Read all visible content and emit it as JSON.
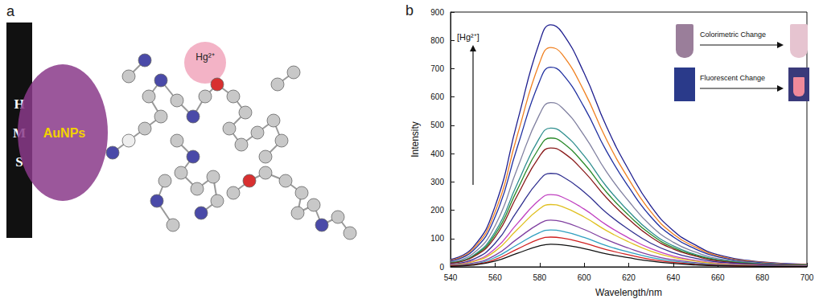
{
  "panel_a": {
    "label": "a",
    "wall_letters": [
      "H",
      "M",
      "S"
    ],
    "nanoparticle": "AuNPs",
    "ion": "Hg²⁺"
  },
  "chart_data": {
    "type": "line",
    "panel_label": "b",
    "x_label": "Wavelength/nm",
    "y_label": "Intensity",
    "annotations": [
      "[Hg²⁺]",
      "Colorimetric Change",
      "Fluorescent Change"
    ],
    "x": [
      540,
      550,
      560,
      570,
      580,
      585,
      590,
      600,
      610,
      620,
      630,
      640,
      650,
      660,
      680,
      700
    ],
    "xlim": [
      540,
      700
    ],
    "xticks": [
      540,
      560,
      580,
      600,
      620,
      640,
      660,
      680,
      700
    ],
    "ylim": [
      0,
      900
    ],
    "yticks": [
      0,
      100,
      200,
      300,
      400,
      500,
      600,
      700,
      800,
      900
    ],
    "grid": false,
    "marker": "none",
    "series": [
      {
        "color": "#1f1f8f",
        "values": [
          26,
          68,
          214,
          513,
          795,
          855,
          829,
          684,
          496,
          342,
          214,
          128,
          77,
          43,
          17,
          9
        ]
      },
      {
        "color": "#f08020",
        "values": [
          23,
          62,
          194,
          465,
          721,
          775,
          752,
          620,
          450,
          310,
          194,
          116,
          70,
          39,
          16,
          8
        ]
      },
      {
        "color": "#2030a0",
        "values": [
          21,
          56,
          176,
          423,
          656,
          705,
          684,
          564,
          409,
          282,
          176,
          106,
          63,
          35,
          14,
          7
        ]
      },
      {
        "color": "#8080a0",
        "values": [
          17,
          46,
          145,
          348,
          539,
          580,
          563,
          464,
          336,
          232,
          145,
          87,
          52,
          29,
          12,
          6
        ]
      },
      {
        "color": "#2f8f8f",
        "values": [
          15,
          39,
          123,
          294,
          456,
          490,
          475,
          392,
          284,
          196,
          123,
          74,
          44,
          25,
          10,
          5
        ]
      },
      {
        "color": "#2a8a2a",
        "values": [
          14,
          36,
          114,
          273,
          423,
          455,
          441,
          364,
          264,
          182,
          114,
          68,
          41,
          23,
          9,
          5
        ]
      },
      {
        "color": "#8a1a1a",
        "values": [
          13,
          34,
          105,
          252,
          391,
          420,
          407,
          336,
          244,
          168,
          105,
          63,
          38,
          21,
          8,
          4
        ]
      },
      {
        "color": "#303090",
        "values": [
          10,
          26,
          83,
          198,
          307,
          330,
          320,
          264,
          191,
          132,
          83,
          50,
          30,
          17,
          7,
          3
        ]
      },
      {
        "color": "#c040c0",
        "values": [
          8,
          20,
          64,
          153,
          237,
          255,
          247,
          204,
          148,
          102,
          64,
          38,
          23,
          13,
          5,
          3
        ]
      },
      {
        "color": "#e0c020",
        "values": [
          7,
          18,
          55,
          132,
          205,
          220,
          213,
          176,
          128,
          88,
          55,
          33,
          20,
          11,
          4,
          2
        ]
      },
      {
        "color": "#8040a0",
        "values": [
          5,
          13,
          41,
          99,
          153,
          165,
          160,
          132,
          96,
          66,
          41,
          25,
          15,
          8,
          3,
          2
        ]
      },
      {
        "color": "#30a0c0",
        "values": [
          4,
          10,
          33,
          78,
          121,
          130,
          126,
          104,
          75,
          52,
          33,
          20,
          12,
          7,
          3,
          1
        ]
      },
      {
        "color": "#d02020",
        "values": [
          3,
          8,
          26,
          63,
          98,
          105,
          102,
          84,
          61,
          42,
          26,
          16,
          9,
          5,
          2,
          1
        ]
      },
      {
        "color": "#111111",
        "values": [
          2,
          6,
          20,
          48,
          74,
          80,
          78,
          64,
          46,
          32,
          20,
          12,
          7,
          4,
          2,
          1
        ]
      }
    ]
  }
}
